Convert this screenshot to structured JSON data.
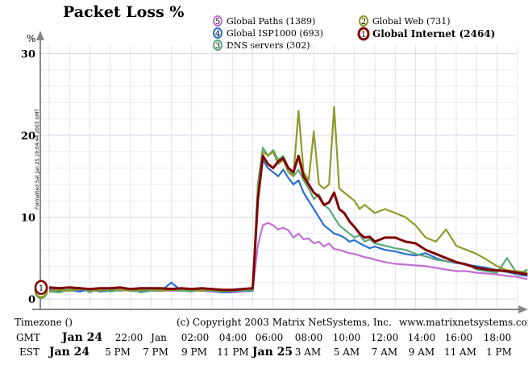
{
  "chart_data": {
    "type": "line",
    "title": "Packet Loss %",
    "ylabel": "%",
    "ylim": [
      0,
      30
    ],
    "yticks": [
      0,
      10,
      20,
      30
    ],
    "grid": true,
    "legend_position": "top",
    "x_range": [
      "Jan 24 20:00 GMT",
      "Jan 25 19:30 GMT"
    ],
    "side_note": "Formatted Sat Jan 25 19:04:44 2003 GMT",
    "timezone_label": "Timezone ()",
    "copyright": "(c) Copyright 2003 Matrix NetSystems, Inc.",
    "website": "www.matrixnetsystems.com",
    "gmt_row": {
      "label": "GMT",
      "ticks": [
        {
          "label": "Jan 24",
          "bold": true
        },
        {
          "label": "22:00",
          "bold": false
        },
        {
          "label": "Jan",
          "bold": false
        },
        {
          "label": "02:00",
          "bold": false
        },
        {
          "label": "04:00",
          "bold": false
        },
        {
          "label": "06:00",
          "bold": false
        },
        {
          "label": "08:00",
          "bold": false
        },
        {
          "label": "10:00",
          "bold": false
        },
        {
          "label": "12:00",
          "bold": false
        },
        {
          "label": "14:00",
          "bold": false
        },
        {
          "label": "16:00",
          "bold": false
        },
        {
          "label": "18:00",
          "bold": false
        }
      ]
    },
    "est_row": {
      "label": "EST",
      "ticks": [
        {
          "label": "Jan 24",
          "bold": true
        },
        {
          "label": "5 PM",
          "bold": false
        },
        {
          "label": "7 PM",
          "bold": false
        },
        {
          "label": "9 PM",
          "bold": false
        },
        {
          "label": "11 PM",
          "bold": false
        },
        {
          "label": "Jan 25",
          "bold": true
        },
        {
          "label": "3 AM",
          "bold": false
        },
        {
          "label": "5 AM",
          "bold": false
        },
        {
          "label": "7 AM",
          "bold": false
        },
        {
          "label": "9 AM",
          "bold": false
        },
        {
          "label": "11 AM",
          "bold": false
        },
        {
          "label": "1 PM",
          "bold": false
        }
      ]
    },
    "x": [
      0,
      0.5,
      1,
      1.5,
      2,
      2.5,
      3,
      3.5,
      4,
      4.5,
      5,
      5.5,
      6,
      6.5,
      7,
      7.5,
      8,
      8.5,
      9,
      9.5,
      10,
      10.25,
      10.5,
      10.75,
      11,
      11.25,
      11.5,
      11.75,
      12,
      12.25,
      12.5,
      12.75,
      13,
      13.25,
      13.5,
      13.75,
      14,
      14.25,
      14.5,
      14.75,
      15,
      15.25,
      15.5,
      15.75,
      16,
      16.5,
      17,
      17.5,
      18,
      18.5,
      19,
      19.5,
      20,
      20.5,
      21,
      21.5,
      22,
      22.5,
      23,
      23.5
    ],
    "series": [
      {
        "legend_number": "5",
        "name": "Global Paths (1389)",
        "color": "#c070d0",
        "values": [
          1.2,
          1.1,
          1.0,
          1.1,
          1.0,
          1.0,
          1.1,
          1.0,
          1.1,
          1.0,
          1.0,
          1.0,
          1.0,
          1.0,
          1.0,
          1.0,
          0.9,
          0.8,
          0.8,
          0.9,
          1.0,
          6.5,
          9.0,
          9.3,
          9.0,
          8.5,
          8.7,
          8.4,
          7.5,
          8.0,
          7.3,
          7.4,
          6.8,
          7.0,
          6.4,
          6.8,
          6.1,
          6.0,
          5.8,
          5.6,
          5.5,
          5.3,
          5.1,
          5.0,
          4.8,
          4.5,
          4.3,
          4.2,
          4.1,
          4.0,
          3.8,
          3.6,
          3.4,
          3.4,
          3.2,
          3.1,
          3.0,
          2.8,
          2.7,
          2.4
        ]
      },
      {
        "legend_number": "4",
        "name": "Global ISP1000 (693)",
        "color": "#2a6fd0",
        "values": [
          1.1,
          1.0,
          1.1,
          0.9,
          1.2,
          0.9,
          1.0,
          1.1,
          1.0,
          0.9,
          1.1,
          1.0,
          2.0,
          1.0,
          1.1,
          1.0,
          1.0,
          0.8,
          0.9,
          1.0,
          1.0,
          12.0,
          17.0,
          16.0,
          15.5,
          15.0,
          15.8,
          14.8,
          14.0,
          14.5,
          13.0,
          12.0,
          11.0,
          10.0,
          9.0,
          8.5,
          8.0,
          7.8,
          7.5,
          7.0,
          7.2,
          6.8,
          6.5,
          6.2,
          6.4,
          6.0,
          5.8,
          5.5,
          5.3,
          5.6,
          5.0,
          4.6,
          4.4,
          4.2,
          4.0,
          3.8,
          3.5,
          3.3,
          3.0,
          2.8
        ]
      },
      {
        "legend_number": "3",
        "name": "DNS servers (302)",
        "color": "#5aaa7a",
        "values": [
          0.9,
          0.8,
          1.1,
          1.4,
          0.8,
          1.3,
          0.9,
          1.1,
          1.2,
          0.8,
          1.0,
          1.2,
          1.1,
          1.0,
          0.9,
          1.3,
          1.0,
          0.9,
          1.1,
          1.0,
          1.1,
          14.0,
          18.5,
          17.5,
          18.2,
          17.0,
          17.5,
          16.0,
          15.0,
          15.8,
          14.5,
          13.5,
          12.2,
          12.8,
          11.5,
          11.0,
          10.0,
          9.0,
          8.5,
          8.0,
          7.5,
          7.8,
          7.0,
          7.3,
          6.8,
          6.5,
          6.2,
          6.0,
          5.5,
          5.2,
          4.8,
          4.6,
          4.5,
          4.3,
          3.6,
          3.4,
          3.2,
          5.0,
          3.0,
          3.6
        ]
      },
      {
        "legend_number": "2",
        "name": "Global Web (731)",
        "color": "#8f9a28",
        "values": [
          1.0,
          1.1,
          1.0,
          1.2,
          1.1,
          1.0,
          1.2,
          1.1,
          1.0,
          1.1,
          1.2,
          1.0,
          1.1,
          1.2,
          1.1,
          1.0,
          1.1,
          1.0,
          1.0,
          1.1,
          1.2,
          13.0,
          18.0,
          17.5,
          18.0,
          16.5,
          17.0,
          15.5,
          15.0,
          23.0,
          15.5,
          14.5,
          20.5,
          14.0,
          13.5,
          14.0,
          23.5,
          13.5,
          13.0,
          12.5,
          12.0,
          11.0,
          11.5,
          11.0,
          10.5,
          11.0,
          10.5,
          10.0,
          9.0,
          7.5,
          7.0,
          8.5,
          6.5,
          6.0,
          5.5,
          4.8,
          4.0,
          3.5,
          3.4,
          3.2
        ]
      },
      {
        "legend_number": "1",
        "name": "Global Internet (2464)",
        "color": "#800000",
        "values": [
          1.4,
          1.3,
          1.4,
          1.3,
          1.2,
          1.3,
          1.3,
          1.4,
          1.2,
          1.3,
          1.3,
          1.3,
          1.2,
          1.3,
          1.2,
          1.3,
          1.2,
          1.1,
          1.1,
          1.2,
          1.3,
          12.0,
          17.5,
          16.5,
          16.0,
          16.8,
          17.2,
          16.0,
          15.5,
          17.5,
          15.0,
          14.0,
          13.0,
          12.5,
          11.5,
          11.8,
          13.0,
          11.0,
          10.5,
          9.5,
          8.8,
          8.0,
          7.5,
          7.6,
          7.0,
          7.5,
          7.5,
          7.0,
          6.8,
          6.0,
          5.5,
          5.0,
          4.5,
          4.2,
          3.8,
          3.6,
          3.5,
          3.4,
          3.2,
          3.0
        ]
      }
    ]
  }
}
